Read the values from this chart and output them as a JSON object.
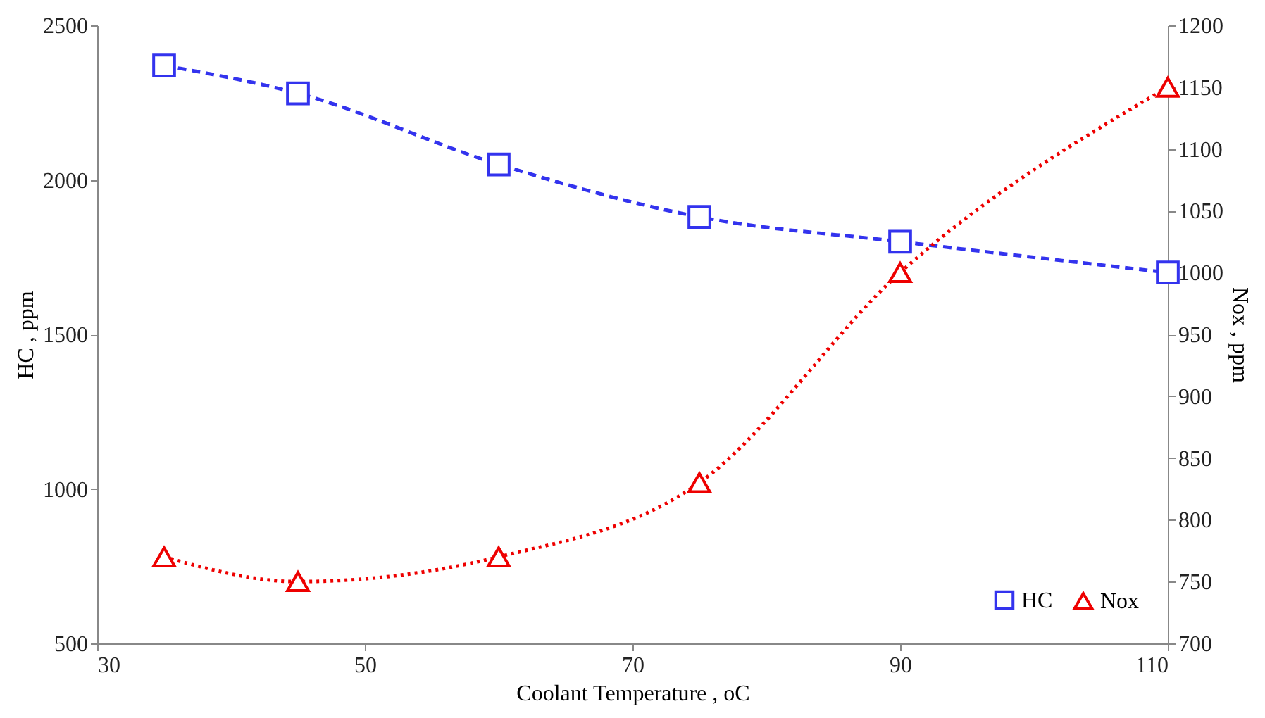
{
  "chart_data": {
    "type": "line",
    "xlabel": "Coolant Temperature , oC",
    "ylabel": "HC , ppm",
    "y2label": "Nox , ppm",
    "x": [
      35,
      45,
      60,
      75,
      90,
      110
    ],
    "series": [
      {
        "name": "HC",
        "color": "#3333ee",
        "values": [
          2370,
          2280,
          2050,
          1880,
          1800,
          1700
        ],
        "marker": "square",
        "line_style": "dashed"
      },
      {
        "name": "Nox",
        "color": "#ee0000",
        "values": [
          770,
          750,
          770,
          830,
          1000,
          1150
        ],
        "marker": "triangle",
        "line_style": "dotted",
        "axis": "y2"
      }
    ],
    "xlim": [
      30,
      110
    ],
    "xticks": [
      30,
      50,
      70,
      90,
      110
    ],
    "ylim": [
      500,
      2500
    ],
    "yticks": [
      500,
      1000,
      1500,
      2000,
      2500
    ],
    "y2lim": [
      700,
      1200
    ],
    "y2ticks": [
      700,
      750,
      800,
      850,
      900,
      950,
      1000,
      1050,
      1100,
      1150,
      1200
    ],
    "grid": false,
    "legend": "bottom right"
  }
}
